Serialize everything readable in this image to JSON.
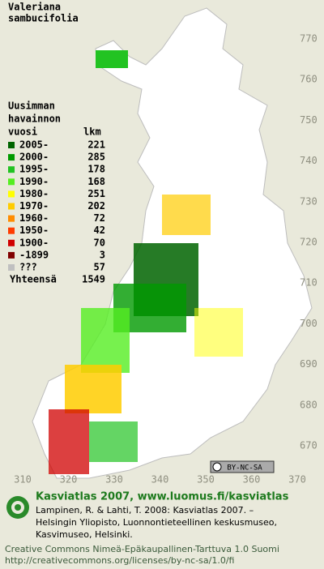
{
  "title": [
    "Valeriana",
    "sambucifolia"
  ],
  "legend": {
    "header": [
      "Uusimman",
      "havainnon",
      "vuosi"
    ],
    "count_header": "lkm",
    "rows": [
      {
        "label": "2005-",
        "count": 221,
        "color": "#006400"
      },
      {
        "label": "2000-",
        "count": 285,
        "color": "#009a00"
      },
      {
        "label": "1995-",
        "count": 178,
        "color": "#22c322"
      },
      {
        "label": "1990-",
        "count": 168,
        "color": "#55ee22"
      },
      {
        "label": "1980-",
        "count": 251,
        "color": "#ffff00"
      },
      {
        "label": "1970-",
        "count": 202,
        "color": "#ffcc00"
      },
      {
        "label": "1960-",
        "count": 72,
        "color": "#ff8c00"
      },
      {
        "label": "1950-",
        "count": 42,
        "color": "#ff3c00"
      },
      {
        "label": "1900-",
        "count": 70,
        "color": "#d00000"
      },
      {
        "label": "-1899",
        "count": 3,
        "color": "#800000"
      },
      {
        "label": "???",
        "count": 57,
        "color": "#c0c0c0"
      }
    ],
    "total_label": "Yhteensä",
    "total": 1549
  },
  "grid_labels": {
    "north": [
      770,
      760,
      750,
      740,
      730,
      720,
      710,
      700,
      690,
      680,
      670
    ],
    "east": [
      310,
      320,
      330,
      340,
      350,
      360,
      370
    ]
  },
  "license_badge": "BY-NC-SA",
  "footer": {
    "site": "Kasviatlas 2007, www.luomus.fi/kasviatlas",
    "citation": [
      "Lampinen, R. & Lahti, T. 2008: Kasviatlas 2007. –",
      "Helsingin Yliopisto, Luonnontieteellinen keskusmuseo,",
      "Kasvimuseo, Helsinki."
    ],
    "license": [
      "Creative Commons Nimeä-Epäkaupallinen-Tarttuva 1.0 Suomi",
      "http://creativecommons.org/licenses/by-nc-sa/1.0/fi"
    ]
  }
}
